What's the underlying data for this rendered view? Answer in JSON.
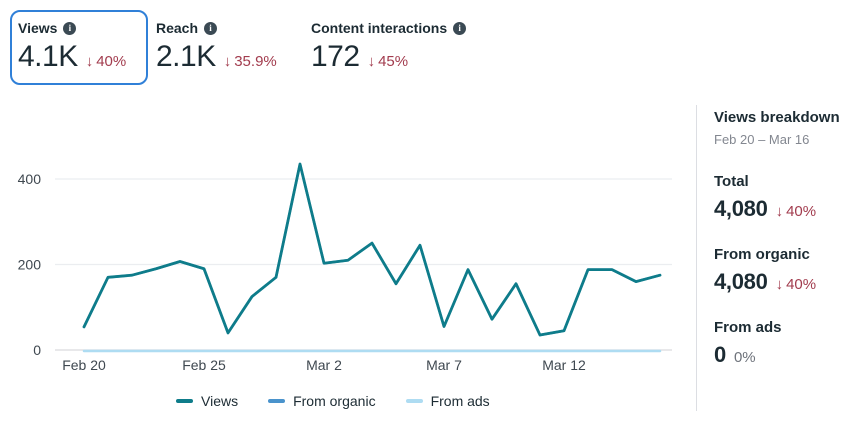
{
  "glyphs": {
    "down_arrow": "↓",
    "info": "i"
  },
  "metrics": [
    {
      "label": "Views",
      "value": "4.1K",
      "delta": "40%",
      "selected": true
    },
    {
      "label": "Reach",
      "value": "2.1K",
      "delta": "35.9%",
      "selected": false
    },
    {
      "label": "Content interactions",
      "value": "172",
      "delta": "45%",
      "selected": false
    }
  ],
  "breakdown": {
    "title": "Views breakdown",
    "date_range": "Feb 20 – Mar 16",
    "rows": [
      {
        "label": "Total",
        "value": "4,080",
        "delta": "40%",
        "negative": true
      },
      {
        "label": "From organic",
        "value": "4,080",
        "delta": "40%",
        "negative": true
      },
      {
        "label": "From ads",
        "value": "0",
        "delta": "0%",
        "negative": false
      }
    ]
  },
  "chart_data": {
    "type": "line",
    "x": [
      "Feb 20",
      "Feb 21",
      "Feb 22",
      "Feb 23",
      "Feb 24",
      "Feb 25",
      "Feb 26",
      "Feb 27",
      "Feb 28",
      "Mar 1",
      "Mar 2",
      "Mar 3",
      "Mar 4",
      "Mar 5",
      "Mar 6",
      "Mar 7",
      "Mar 8",
      "Mar 9",
      "Mar 10",
      "Mar 11",
      "Mar 12",
      "Mar 13",
      "Mar 14",
      "Mar 15",
      "Mar 16"
    ],
    "series": [
      {
        "name": "Views",
        "color": "#0e7c8a",
        "values": [
          54,
          170,
          175,
          190,
          207,
          190,
          40,
          125,
          170,
          435,
          203,
          210,
          250,
          155,
          245,
          55,
          188,
          72,
          155,
          35,
          45,
          188,
          188,
          160,
          175
        ]
      },
      {
        "name": "From organic",
        "color": "#4a93cc",
        "values": [
          54,
          170,
          175,
          190,
          207,
          190,
          40,
          125,
          170,
          435,
          203,
          210,
          250,
          155,
          245,
          55,
          188,
          72,
          155,
          35,
          45,
          188,
          188,
          160,
          175
        ]
      },
      {
        "name": "From ads",
        "color": "#aedcf2",
        "values": [
          0,
          0,
          0,
          0,
          0,
          0,
          0,
          0,
          0,
          0,
          0,
          0,
          0,
          0,
          0,
          0,
          0,
          0,
          0,
          0,
          0,
          0,
          0,
          0,
          0
        ]
      }
    ],
    "title": "",
    "xlabel": "",
    "ylabel": "",
    "ylim": [
      0,
      450
    ],
    "yticks": [
      0,
      200,
      400
    ],
    "xticks": [
      "Feb 20",
      "Feb 25",
      "Mar 2",
      "Mar 7",
      "Mar 12"
    ],
    "xtick_indices": [
      0,
      5,
      10,
      15,
      20
    ],
    "grid": true,
    "legend_position": "bottom"
  }
}
